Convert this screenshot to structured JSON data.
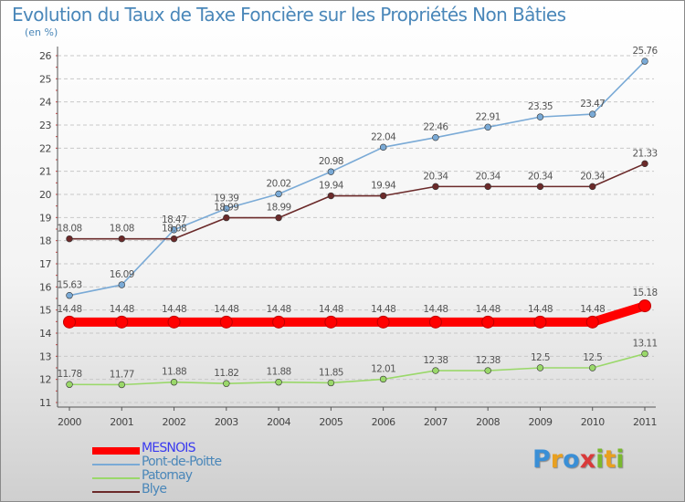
{
  "title": "Evolution du Taux de Taxe Foncière sur les Propriétés Non Bâties",
  "subtitle": "(en %)",
  "logo": {
    "text": "Proxiti",
    "colors": [
      "#3a8fd6",
      "#e8a020",
      "#3a8fd6",
      "#d93a3a",
      "#7ab830",
      "#e8a020",
      "#7ab830"
    ]
  },
  "chart_data": {
    "type": "line",
    "title": "Evolution du Taux de Taxe Foncière sur les Propriétés Non Bâties",
    "ylabel": "(en %)",
    "xlabel": "",
    "x": [
      "2000",
      "2001",
      "2002",
      "2003",
      "2004",
      "2005",
      "2006",
      "2007",
      "2008",
      "2009",
      "2010",
      "2011"
    ],
    "ylim": [
      11,
      26
    ],
    "yticks": [
      11,
      12,
      13,
      14,
      15,
      16,
      17,
      18,
      19,
      20,
      21,
      22,
      23,
      24,
      25,
      26
    ],
    "grid": "horizontal-dashed",
    "legend_position": "bottom-left",
    "series": [
      {
        "name": "MESNOIS",
        "color": "#ff0000",
        "emphasis": true,
        "values": [
          14.48,
          14.48,
          14.48,
          14.48,
          14.48,
          14.48,
          14.48,
          14.48,
          14.48,
          14.48,
          14.48,
          15.18
        ],
        "labels": [
          "14.48",
          "14.48",
          "14.48",
          "14.48",
          "14.48",
          "14.48",
          "14.48",
          "14.48",
          "14.48",
          "14.48",
          "14.48",
          "15.18"
        ]
      },
      {
        "name": "Pont-de-Poitte",
        "color": "#7aaad6",
        "emphasis": false,
        "values": [
          15.63,
          16.09,
          18.47,
          19.39,
          20.02,
          20.98,
          22.04,
          22.46,
          22.91,
          23.35,
          23.47,
          25.76
        ],
        "labels": [
          "15.63",
          "16.09",
          "18.47",
          "19.39",
          "20.02",
          "20.98",
          "22.04",
          "22.46",
          "22.91",
          "23.35",
          "23.47",
          "25.76"
        ]
      },
      {
        "name": "Patornay",
        "color": "#9ad86a",
        "emphasis": false,
        "values": [
          11.78,
          11.77,
          11.88,
          11.82,
          11.88,
          11.85,
          12.01,
          12.38,
          12.38,
          12.5,
          12.5,
          13.11
        ],
        "labels": [
          "11.78",
          "11.77",
          "11.88",
          "11.82",
          "11.88",
          "11.85",
          "12.01",
          "12.38",
          "12.38",
          "12.5",
          "12.5",
          "13.11"
        ]
      },
      {
        "name": "Blye",
        "color": "#6b2a2a",
        "emphasis": false,
        "values": [
          18.08,
          18.08,
          18.08,
          18.99,
          18.99,
          19.94,
          19.94,
          20.34,
          20.34,
          20.34,
          20.34,
          21.33
        ],
        "labels": [
          "18.08",
          "18.08",
          "18.08",
          "18.99",
          "18.99",
          "19.94",
          "19.94",
          "20.34",
          "20.34",
          "20.34",
          "20.34",
          "21.33"
        ]
      }
    ]
  }
}
